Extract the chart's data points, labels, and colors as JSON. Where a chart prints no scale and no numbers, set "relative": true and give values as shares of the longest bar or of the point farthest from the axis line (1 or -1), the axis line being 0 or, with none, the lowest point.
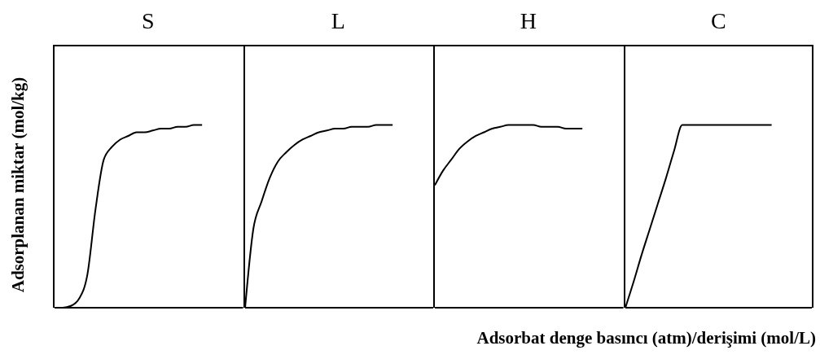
{
  "chart_data": [
    {
      "type": "line",
      "title": "S",
      "ylabel": "Adsorplanan miktar (mol/kg)",
      "relative": true,
      "color": "#000000",
      "categories": [
        null,
        null,
        null,
        null,
        null,
        null,
        null,
        null,
        null,
        null,
        null,
        null,
        null,
        null,
        null,
        null,
        null,
        null,
        null,
        null,
        null,
        null,
        null,
        null
      ],
      "values": [
        0,
        0,
        0.01,
        0.05,
        0.18,
        0.54,
        0.81,
        0.88,
        0.92,
        0.94,
        0.96,
        0.96,
        0.97,
        0.98,
        0.98,
        0.99,
        0.99,
        1,
        1,
        null,
        null,
        null,
        null,
        null
      ]
    },
    {
      "type": "line",
      "title": "L",
      "relative": true,
      "color": "#000000",
      "categories": [
        null,
        null,
        null,
        null,
        null,
        null,
        null,
        null,
        null,
        null,
        null,
        null,
        null,
        null,
        null,
        null,
        null,
        null,
        null,
        null,
        null,
        null,
        null,
        null
      ],
      "values": [
        0,
        0.43,
        0.58,
        0.71,
        0.8,
        0.85,
        0.89,
        0.92,
        0.94,
        0.96,
        0.97,
        0.98,
        0.98,
        0.99,
        0.99,
        0.99,
        1,
        1,
        1,
        null,
        null,
        null,
        null,
        null
      ]
    },
    {
      "type": "line",
      "title": "H",
      "relative": true,
      "color": "#000000",
      "categories": [
        null,
        null,
        null,
        null,
        null,
        null,
        null,
        null,
        null,
        null,
        null,
        null,
        null,
        null,
        null,
        null,
        null,
        null,
        null,
        null,
        null,
        null,
        null,
        null
      ],
      "values": [
        0.67,
        0.75,
        0.81,
        0.87,
        0.91,
        0.94,
        0.96,
        0.98,
        0.99,
        1,
        1,
        1,
        1,
        0.99,
        0.99,
        0.99,
        0.98,
        0.98,
        0.98,
        null,
        null,
        null,
        null,
        null
      ]
    },
    {
      "type": "line",
      "title": "C",
      "xlabel": "Adsorbat denge basıncı (atm)/derişimi (mol/L)",
      "relative": true,
      "color": "#000000",
      "categories": [
        null,
        null,
        null,
        null,
        null,
        null,
        null,
        null,
        null,
        null,
        null,
        null,
        null,
        null,
        null,
        null,
        null,
        null,
        null,
        null,
        null,
        null,
        null,
        null
      ],
      "values": [
        0,
        0.14,
        0.29,
        0.43,
        0.57,
        0.71,
        0.86,
        1,
        1,
        1,
        1,
        1,
        1,
        1,
        1,
        1,
        1,
        1,
        1,
        null,
        null,
        null,
        null,
        null
      ]
    }
  ]
}
